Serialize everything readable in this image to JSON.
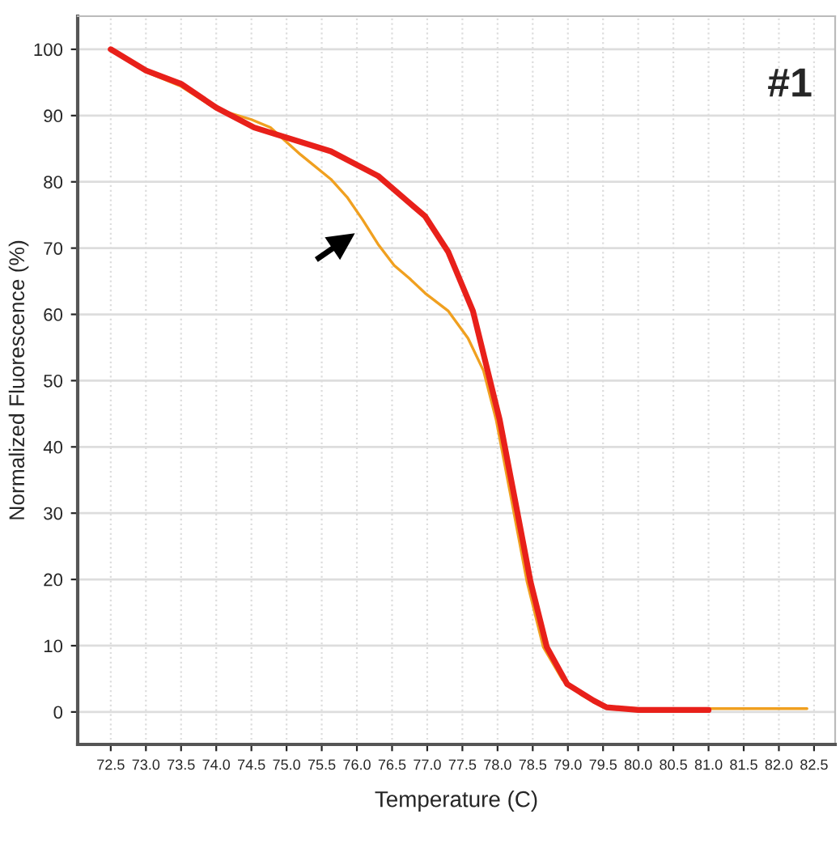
{
  "chart_data": {
    "type": "line",
    "xlabel": "Temperature (C)",
    "ylabel": "Normalized Fluorescence (%)",
    "annotations": [
      "#1"
    ],
    "xlim": [
      72.03,
      82.8
    ],
    "ylim": [
      -4.9,
      105
    ],
    "xticks": [
      72.5,
      {
        "value": 73,
        "label": "73.0"
      },
      73.5,
      {
        "value": 74,
        "label": "74.0"
      },
      74.5,
      {
        "value": 75,
        "label": "75.0"
      },
      75.5,
      {
        "value": 76,
        "label": "76.0"
      },
      76.5,
      {
        "value": 77,
        "label": "77.0"
      },
      77.5,
      {
        "value": 78,
        "label": "78.0"
      },
      78.5,
      {
        "value": 79,
        "label": "79.0"
      },
      79.5,
      {
        "value": 80,
        "label": "80.0"
      },
      80.5,
      {
        "value": 81,
        "label": "81.0"
      },
      81.5,
      {
        "value": 82,
        "label": "82.0"
      },
      82.5
    ],
    "yticks": [
      0,
      10,
      20,
      30,
      40,
      50,
      60,
      70,
      80,
      90,
      100
    ],
    "grid": true,
    "marker": "none",
    "line_style": "solid",
    "series": [
      {
        "color": "#f0a020",
        "x": [
          72.5,
          73.0,
          73.5,
          74.0,
          74.5,
          74.77,
          75.2,
          75.63,
          75.86,
          76.08,
          76.3,
          76.53,
          76.75,
          76.97,
          77.3,
          77.58,
          77.8,
          77.98,
          78.2,
          78.42,
          78.65,
          78.92,
          79.2,
          79.5,
          80.0,
          81.0,
          82.4
        ],
        "values": [
          100,
          96.6,
          94.4,
          91.0,
          89.4,
          88.2,
          84.1,
          80.4,
          77.7,
          74.3,
          70.6,
          67.4,
          65.4,
          63.2,
          60.5,
          56.4,
          51.5,
          44.1,
          31.9,
          19.6,
          9.8,
          4.9,
          2.5,
          0.7,
          0.5,
          0.5,
          0.5
        ]
      },
      {
        "color": "#e8201a",
        "x": [
          72.5,
          73.0,
          73.5,
          74.0,
          74.54,
          75.63,
          76.3,
          76.97,
          77.3,
          77.65,
          78.03,
          78.25,
          78.47,
          78.7,
          78.99,
          79.37,
          79.55,
          80.0,
          81.0
        ],
        "values": [
          100,
          96.8,
          94.8,
          91.2,
          88.2,
          84.6,
          80.9,
          74.8,
          69.4,
          60.5,
          44.1,
          31.9,
          19.6,
          9.8,
          4.2,
          1.7,
          0.7,
          0.3,
          0.3
        ]
      }
    ]
  }
}
